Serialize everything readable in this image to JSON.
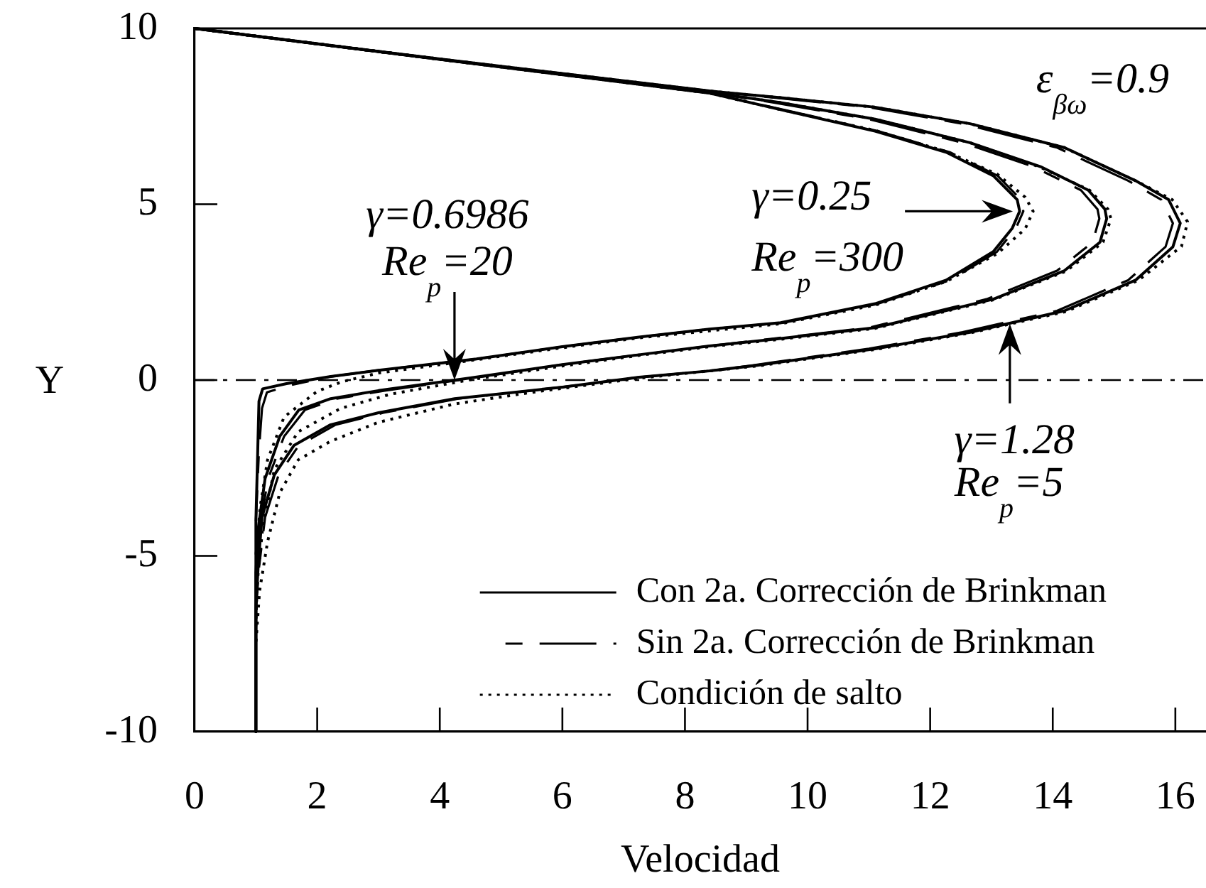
{
  "chart_data": {
    "type": "line",
    "xlabel": "Velocidad",
    "ylabel": "Y",
    "xlim": [
      0,
      16.5
    ],
    "ylim": [
      -10,
      10
    ],
    "xticks": [
      0,
      2,
      4,
      6,
      8,
      10,
      12,
      14,
      16
    ],
    "yticks": [
      -10,
      -5,
      0,
      5,
      10
    ],
    "legend": "bottom right",
    "ref_lines": [
      {
        "axis": "y",
        "value": 0,
        "color": "#000000",
        "line_style": "dashed"
      }
    ],
    "annotations": [
      {
        "text": "γ=0.6986 Re$_{p}$=20",
        "x": 4.24,
        "y": 0
      },
      {
        "text": "γ=0.25 Re$_{p}$=300",
        "x": 13.35,
        "y": 4.8
      },
      {
        "text": "γ=1.28 Re$_{p}$=5",
        "x": 13.3,
        "y": 1.6
      },
      "ε$_{βω}$=0.9"
    ],
    "series": [
      {
        "name": "Con 2a. Corrección de Brinkman",
        "color": "#000000",
        "line_style": "solid",
        "x": [
          0,
          4,
          8.4,
          9.56,
          11.1,
          12.26,
          13.03,
          13.42,
          13.46,
          13.34,
          13.03,
          12.26,
          11.1,
          9.56,
          8.4,
          7.25,
          6,
          4.6,
          3,
          2.22,
          1.5,
          1.11,
          1.05,
          1.03,
          1,
          1
        ],
        "values": [
          10,
          9.12,
          8.16,
          7.69,
          7.08,
          6.48,
          5.81,
          5.13,
          4.8,
          4.32,
          3.65,
          2.84,
          2.17,
          1.63,
          1.45,
          1.22,
          0.95,
          0.6,
          0.28,
          0.1,
          -0.1,
          -0.25,
          -0.6,
          -2,
          -4,
          -10
        ]
      },
      {
        "name": "Sin 2a. Corrección de Brinkman",
        "color": "#000000",
        "line_style": "dashed",
        "x": [
          0,
          4,
          8.4,
          9.6,
          11.15,
          12.32,
          13.1,
          13.48,
          13.52,
          13.4,
          13.09,
          12.32,
          11.15,
          9.6,
          8.4,
          7.25,
          6,
          4.6,
          3,
          2.22,
          1.55,
          1.18,
          1.1,
          1.05,
          1
        ],
        "values": [
          10,
          9.12,
          8.16,
          7.69,
          7.08,
          6.48,
          5.81,
          5.13,
          4.8,
          4.32,
          3.65,
          2.84,
          2.17,
          1.63,
          1.45,
          1.22,
          0.95,
          0.6,
          0.28,
          0.1,
          -0.15,
          -0.35,
          -0.8,
          -2,
          -4
        ]
      },
      {
        "name": "Condición de salto",
        "color": "#000000",
        "line_style": "dotted",
        "x": [
          0,
          4,
          8.4,
          9.56,
          11.1,
          12.26,
          13.1,
          13.55,
          13.68,
          13.55,
          13.1,
          12.26,
          11.1,
          9.56,
          7.25,
          6,
          4.6,
          3,
          2.4,
          2,
          1.46,
          1.19,
          1.07,
          1
        ],
        "values": [
          10,
          9.12,
          8.16,
          7.69,
          7.1,
          6.5,
          5.85,
          5.2,
          4.8,
          4.3,
          3.6,
          2.8,
          2.13,
          1.6,
          1.2,
          0.92,
          0.58,
          0.2,
          -0.05,
          -0.32,
          -1.05,
          -2.27,
          -3.6,
          -5
        ]
      },
      {
        "color": "#000000",
        "line_style": "solid",
        "x": [
          0,
          4,
          8.4,
          9.56,
          11.1,
          12.65,
          13.8,
          14.58,
          14.85,
          14.88,
          14.77,
          14.19,
          13.03,
          11.1,
          9.56,
          8.4,
          7.25,
          6,
          4.5,
          3,
          2.22,
          1.7,
          1.39,
          1.15,
          1.04,
          1,
          1
        ],
        "values": [
          10,
          9.12,
          8.18,
          7.89,
          7.42,
          6.75,
          6.07,
          5.4,
          4.86,
          4.59,
          3.92,
          3.11,
          2.3,
          1.49,
          1.18,
          0.97,
          0.72,
          0.44,
          0.06,
          -0.3,
          -0.53,
          -0.85,
          -1.6,
          -2.8,
          -4.2,
          -5.5,
          -10
        ]
      },
      {
        "color": "#000000",
        "line_style": "dashed",
        "x": [
          0,
          4,
          8.4,
          9.45,
          11,
          12.53,
          13.68,
          14.46,
          14.73,
          14.76,
          14.65,
          14.07,
          12.92,
          11,
          9.45,
          8.4,
          7.25,
          6,
          4.56,
          3.1,
          2.32,
          1.8,
          1.46,
          1.2,
          1.06,
          1
        ],
        "values": [
          10,
          9.12,
          8.18,
          7.89,
          7.42,
          6.75,
          6.07,
          5.4,
          4.86,
          4.59,
          3.92,
          3.11,
          2.3,
          1.49,
          1.18,
          0.97,
          0.72,
          0.44,
          0.06,
          -0.3,
          -0.53,
          -0.85,
          -1.6,
          -2.8,
          -4.2,
          -5.5
        ]
      },
      {
        "color": "#000000",
        "line_style": "dotted",
        "x": [
          0,
          4,
          8.4,
          9.56,
          11.1,
          12.65,
          13.8,
          14.6,
          14.9,
          14.95,
          14.82,
          14.22,
          13.03,
          11.1,
          9.56,
          8.4,
          7.25,
          6,
          4.5,
          3.2,
          2.39,
          1.69,
          1.3,
          1.11,
          1.02,
          1
        ],
        "values": [
          10,
          9.12,
          8.18,
          7.89,
          7.42,
          6.75,
          6.05,
          5.4,
          4.86,
          4.59,
          3.92,
          3.1,
          2.28,
          1.47,
          1.16,
          0.95,
          0.7,
          0.4,
          0.01,
          -0.4,
          -0.8,
          -1.47,
          -2.55,
          -4.2,
          -5.8,
          -7
        ]
      },
      {
        "color": "#000000",
        "line_style": "solid",
        "x": [
          0,
          4,
          8.4,
          9.56,
          11.1,
          12.65,
          14.19,
          15.35,
          15.89,
          16.08,
          15.96,
          15.35,
          14.19,
          12.65,
          11.1,
          9.18,
          8.4,
          7.25,
          6,
          4.24,
          3,
          2.22,
          1.62,
          1.3,
          1.1,
          1.04,
          1,
          1
        ],
        "values": [
          10,
          9.13,
          8.22,
          8.03,
          7.76,
          7.29,
          6.61,
          5.67,
          5.13,
          4.46,
          3.79,
          2.84,
          1.97,
          1.36,
          0.89,
          0.42,
          0.26,
          0.08,
          -0.2,
          -0.53,
          -0.93,
          -1.27,
          -1.86,
          -2.7,
          -3.9,
          -5.2,
          -6.5,
          -10
        ]
      },
      {
        "color": "#000000",
        "line_style": "dashed",
        "x": [
          0,
          4,
          8.4,
          9.45,
          11,
          12.53,
          14.07,
          15.23,
          15.77,
          15.96,
          15.84,
          15.23,
          14.07,
          12.53,
          11,
          9.1,
          8.4,
          7.25,
          6,
          4.3,
          3.08,
          2.3,
          1.7,
          1.37,
          1.15,
          1.06,
          1
        ],
        "values": [
          10,
          9.13,
          8.22,
          8.03,
          7.76,
          7.29,
          6.61,
          5.67,
          5.13,
          4.46,
          3.79,
          2.84,
          1.97,
          1.36,
          0.89,
          0.42,
          0.26,
          0.08,
          -0.2,
          -0.53,
          -0.93,
          -1.27,
          -1.86,
          -2.7,
          -3.9,
          -5.2,
          -6.5
        ]
      },
      {
        "color": "#000000",
        "line_style": "dotted",
        "x": [
          0,
          4,
          8.4,
          9.56,
          11.1,
          12.65,
          14.19,
          15.35,
          15.95,
          16.2,
          16.1,
          15.4,
          14.22,
          12.65,
          11.1,
          9.18,
          8.4,
          7.25,
          5.5,
          4.24,
          3,
          2.22,
          1.69,
          1.39,
          1.19,
          1.06,
          1
        ],
        "values": [
          10,
          9.13,
          8.22,
          8.03,
          7.76,
          7.29,
          6.61,
          5.67,
          5.13,
          4.5,
          3.8,
          2.84,
          1.95,
          1.34,
          0.87,
          0.4,
          0.26,
          0.05,
          -0.35,
          -0.68,
          -1.2,
          -1.74,
          -2.27,
          -3.2,
          -4.6,
          -6,
          -7.5
        ]
      }
    ]
  }
}
